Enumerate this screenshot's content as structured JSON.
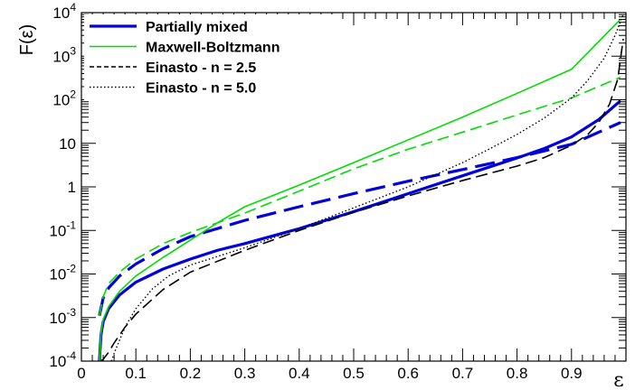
{
  "chart_data": {
    "type": "line",
    "title": "",
    "xlabel": "ε",
    "ylabel": "F(ε)",
    "xlim": [
      0,
      1
    ],
    "ylim": [
      0.0001,
      10000
    ],
    "yscale": "log",
    "grid": false,
    "legend_placement": "top-left",
    "x_ticks": [
      "0",
      "0.1",
      "0.2",
      "0.3",
      "0.4",
      "0.5",
      "0.6",
      "0.7",
      "0.8",
      "0.9"
    ],
    "x_tick_values": [
      0,
      0.1,
      0.2,
      0.3,
      0.4,
      0.5,
      0.6,
      0.7,
      0.8,
      0.9
    ],
    "y_ticks": [
      {
        "value": 0.0001,
        "base": "10",
        "exp": "-4"
      },
      {
        "value": 0.001,
        "base": "10",
        "exp": "-3"
      },
      {
        "value": 0.01,
        "base": "10",
        "exp": "-2"
      },
      {
        "value": 0.1,
        "base": "10",
        "exp": "-1"
      },
      {
        "value": 1,
        "base": "1",
        "exp": ""
      },
      {
        "value": 10,
        "base": "10",
        "exp": ""
      },
      {
        "value": 100,
        "base": "10",
        "exp": "2"
      },
      {
        "value": 1000,
        "base": "10",
        "exp": "3"
      },
      {
        "value": 10000,
        "base": "10",
        "exp": "4"
      }
    ],
    "legend": [
      {
        "label": "Partially mixed",
        "color": "#0000dd",
        "style": "solid-thick"
      },
      {
        "label": "Maxwell-Boltzmann",
        "color": "#00dd00",
        "style": "solid"
      },
      {
        "label": "Einasto - n = 2.5",
        "color": "#000000",
        "style": "dashed"
      },
      {
        "label": "Einasto - n = 5.0",
        "color": "#000000",
        "style": "dotted"
      }
    ],
    "series": [
      {
        "color": "#0000dd",
        "style": "solid-thick",
        "x": [
          0.033,
          0.036,
          0.04,
          0.05,
          0.07,
          0.1,
          0.15,
          0.2,
          0.25,
          0.3,
          0.4,
          0.5,
          0.6,
          0.7,
          0.8,
          0.85,
          0.9,
          0.95,
          0.99
        ],
        "y": [
          0.0001,
          0.0004,
          0.0008,
          0.0016,
          0.0033,
          0.0065,
          0.013,
          0.022,
          0.035,
          0.05,
          0.11,
          0.27,
          0.7,
          1.8,
          4.6,
          7.6,
          14,
          35,
          95
        ]
      },
      {
        "color": "#0000dd",
        "style": "dashed-thick",
        "x": [
          0.033,
          0.04,
          0.05,
          0.07,
          0.1,
          0.15,
          0.2,
          0.3,
          0.4,
          0.5,
          0.6,
          0.7,
          0.8,
          0.9,
          0.99
        ],
        "y": [
          0.0011,
          0.0028,
          0.0048,
          0.009,
          0.017,
          0.038,
          0.072,
          0.17,
          0.35,
          0.7,
          1.35,
          2.5,
          4.7,
          9.5,
          30
        ]
      },
      {
        "color": "#00dd00",
        "style": "solid",
        "x": [
          0.033,
          0.036,
          0.04,
          0.05,
          0.07,
          0.1,
          0.15,
          0.2,
          0.25,
          0.3,
          0.4,
          0.5,
          0.6,
          0.7,
          0.8,
          0.9,
          0.99
        ],
        "y": [
          0.0001,
          0.00045,
          0.0009,
          0.0018,
          0.004,
          0.009,
          0.024,
          0.06,
          0.15,
          0.35,
          1.1,
          3.6,
          12,
          40,
          140,
          500,
          7000
        ]
      },
      {
        "color": "#00dd00",
        "style": "dashed",
        "x": [
          0.033,
          0.04,
          0.05,
          0.07,
          0.1,
          0.15,
          0.2,
          0.3,
          0.4,
          0.5,
          0.6,
          0.7,
          0.8,
          0.9,
          0.99
        ],
        "y": [
          0.0011,
          0.003,
          0.006,
          0.011,
          0.022,
          0.05,
          0.09,
          0.25,
          0.8,
          2.6,
          7.3,
          18,
          45,
          110,
          330
        ]
      },
      {
        "color": "#000000",
        "style": "dashed",
        "x": [
          0.035,
          0.04,
          0.05,
          0.06,
          0.08,
          0.1,
          0.15,
          0.2,
          0.3,
          0.4,
          0.5,
          0.6,
          0.7,
          0.8,
          0.85,
          0.9,
          0.93,
          0.95,
          0.97,
          0.985,
          0.995
        ],
        "y": [
          0.0001,
          0.00011,
          0.00016,
          0.00026,
          0.0006,
          0.0012,
          0.0044,
          0.011,
          0.035,
          0.1,
          0.26,
          0.62,
          1.4,
          3.0,
          4.7,
          9,
          16,
          30,
          80,
          300,
          2500
        ]
      },
      {
        "color": "#000000",
        "style": "dotted",
        "x": [
          0.055,
          0.06,
          0.07,
          0.08,
          0.1,
          0.13,
          0.16,
          0.2,
          0.3,
          0.4,
          0.5,
          0.6,
          0.65,
          0.7,
          0.75,
          0.8,
          0.85,
          0.9,
          0.93,
          0.96,
          0.98,
          0.995
        ],
        "y": [
          0.0001,
          0.00015,
          0.0003,
          0.0006,
          0.0016,
          0.0045,
          0.009,
          0.016,
          0.04,
          0.11,
          0.33,
          1.0,
          1.9,
          3.6,
          7.5,
          16,
          38,
          110,
          280,
          900,
          3000,
          9000
        ]
      }
    ]
  }
}
